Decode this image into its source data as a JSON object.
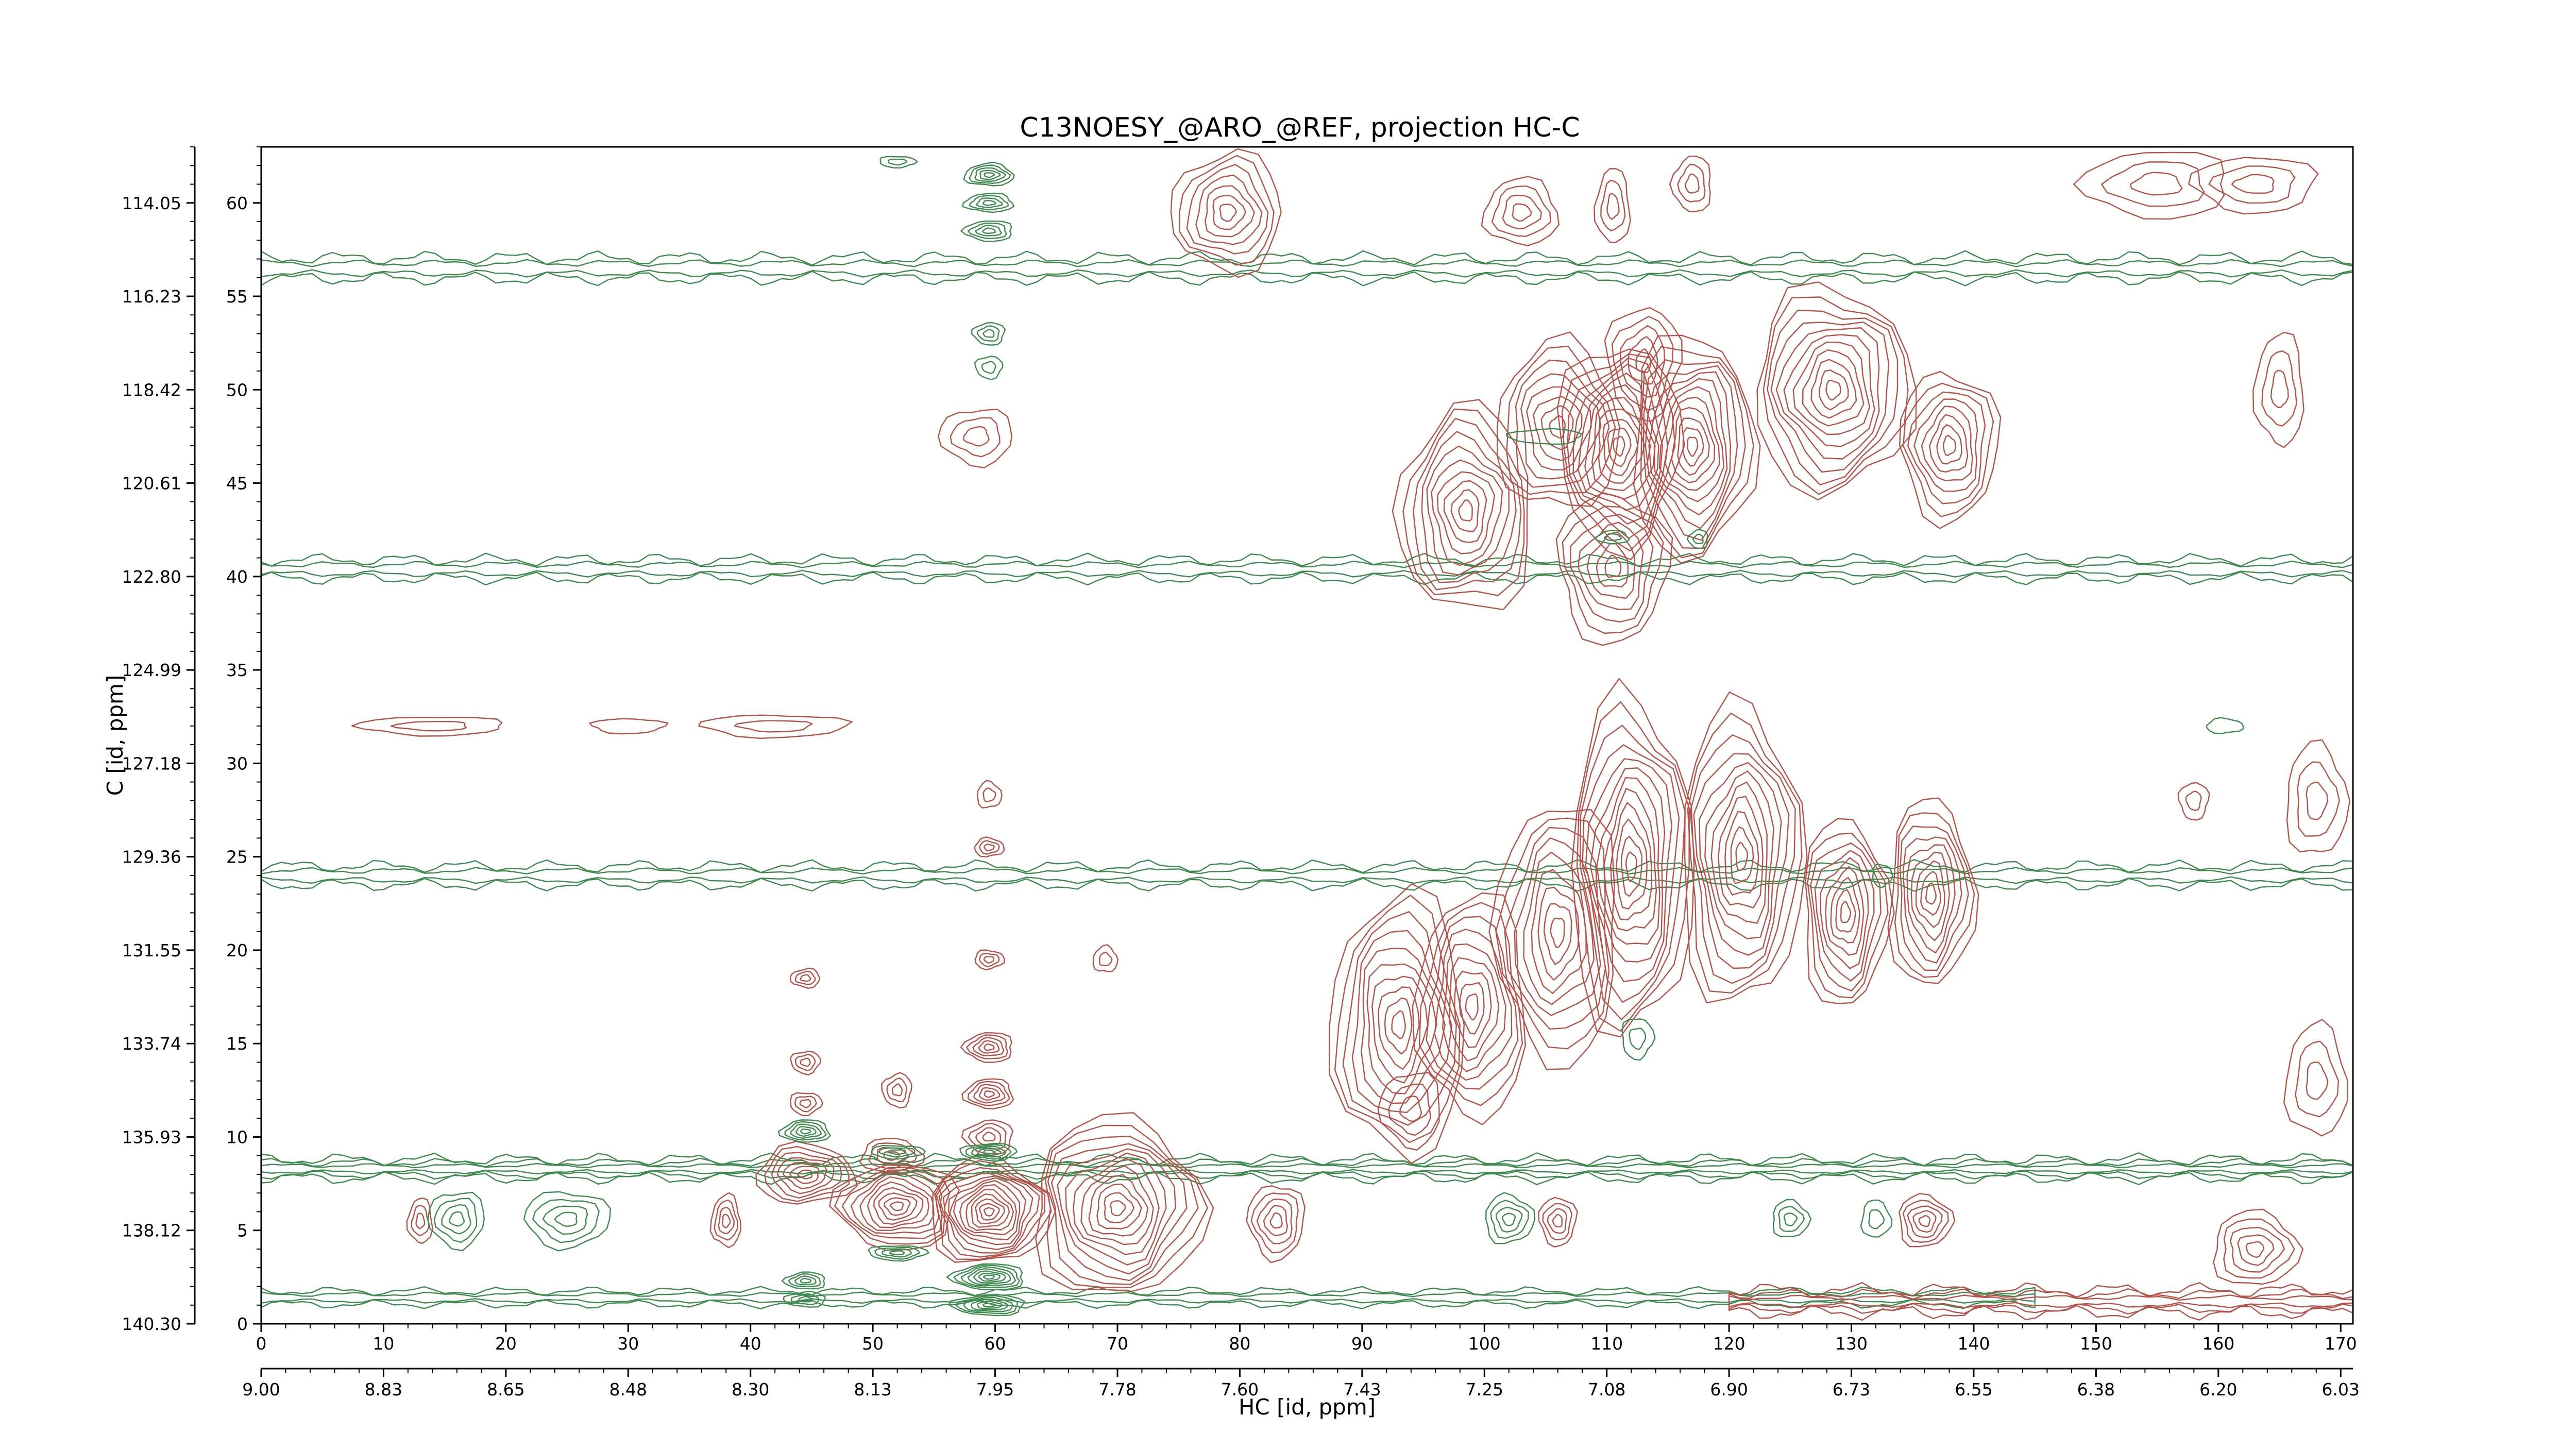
{
  "chart_data": {
    "type": "contour",
    "title": "C13NOESY_@ARO_@REF, projection HC-C",
    "xlabel": "HC [id, ppm]",
    "ylabel": "C [id, ppm]",
    "xlim": [
      0,
      171
    ],
    "ylim": [
      0,
      63
    ],
    "x_index_ticks": [
      "0",
      "10",
      "20",
      "30",
      "40",
      "50",
      "60",
      "70",
      "80",
      "90",
      "100",
      "110",
      "120",
      "130",
      "140",
      "150",
      "160",
      "170"
    ],
    "x_ppm_ticks": [
      "9.00",
      "8.83",
      "8.65",
      "8.48",
      "8.30",
      "8.13",
      "7.95",
      "7.78",
      "7.60",
      "7.43",
      "7.25",
      "7.08",
      "6.90",
      "6.73",
      "6.55",
      "6.38",
      "6.20",
      "6.03"
    ],
    "y_index_ticks": [
      "0",
      "5",
      "10",
      "15",
      "20",
      "25",
      "30",
      "35",
      "40",
      "45",
      "50",
      "55",
      "60"
    ],
    "y_ppm_ticks": [
      "140.30",
      "138.12",
      "135.93",
      "133.74",
      "131.55",
      "129.36",
      "127.18",
      "124.99",
      "122.80",
      "120.61",
      "118.42",
      "116.23",
      "114.05"
    ],
    "positive_color": "#b5534a",
    "negative_color": "#3f8a4f",
    "positive_peaks": [
      {
        "x": 79,
        "y": 59.5,
        "rx": 4.5,
        "ry": 3.2,
        "levels": 7
      },
      {
        "x": 103,
        "y": 59.5,
        "rx": 3,
        "ry": 1.8,
        "levels": 4
      },
      {
        "x": 110.5,
        "y": 59.8,
        "rx": 1.4,
        "ry": 2,
        "levels": 3
      },
      {
        "x": 117,
        "y": 61,
        "rx": 1.6,
        "ry": 1.5,
        "levels": 3
      },
      {
        "x": 98.5,
        "y": 43.5,
        "rx": 5.5,
        "ry": 5.5,
        "levels": 10
      },
      {
        "x": 106,
        "y": 48,
        "rx": 5,
        "ry": 4.5,
        "levels": 8
      },
      {
        "x": 111,
        "y": 47,
        "rx": 5,
        "ry": 5.5,
        "levels": 11
      },
      {
        "x": 117,
        "y": 47,
        "rx": 5,
        "ry": 6,
        "levels": 12
      },
      {
        "x": 128.5,
        "y": 50,
        "rx": 6.5,
        "ry": 5.5,
        "levels": 11
      },
      {
        "x": 138,
        "y": 47,
        "rx": 4,
        "ry": 4,
        "levels": 8
      },
      {
        "x": 110.5,
        "y": 40.5,
        "rx": 4.5,
        "ry": 4,
        "levels": 7
      },
      {
        "x": 113,
        "y": 51.5,
        "rx": 3,
        "ry": 3,
        "levels": 5
      },
      {
        "x": 93,
        "y": 16,
        "rx": 5.5,
        "ry": 7,
        "levels": 10
      },
      {
        "x": 99,
        "y": 17,
        "rx": 4.5,
        "ry": 6,
        "levels": 9
      },
      {
        "x": 106,
        "y": 21,
        "rx": 5,
        "ry": 7,
        "levels": 9
      },
      {
        "x": 112,
        "y": 24.5,
        "rx": 5,
        "ry": 9,
        "levels": 12
      },
      {
        "x": 121,
        "y": 25,
        "rx": 5,
        "ry": 8,
        "levels": 11
      },
      {
        "x": 129.5,
        "y": 22,
        "rx": 3.5,
        "ry": 5,
        "levels": 9
      },
      {
        "x": 136.5,
        "y": 23,
        "rx": 3.5,
        "ry": 5,
        "levels": 9
      },
      {
        "x": 94,
        "y": 11.5,
        "rx": 2.5,
        "ry": 2,
        "levels": 3
      },
      {
        "x": 44.5,
        "y": 8,
        "rx": 4,
        "ry": 1.6,
        "levels": 7
      },
      {
        "x": 52,
        "y": 6.3,
        "rx": 5,
        "ry": 2.3,
        "levels": 10
      },
      {
        "x": 59.5,
        "y": 6,
        "rx": 5,
        "ry": 2.8,
        "levels": 13
      },
      {
        "x": 70,
        "y": 6.2,
        "rx": 7,
        "ry": 4.8,
        "levels": 12
      },
      {
        "x": 38,
        "y": 5.5,
        "rx": 1.2,
        "ry": 1.4,
        "levels": 4
      },
      {
        "x": 13,
        "y": 5.5,
        "rx": 1,
        "ry": 1.2,
        "levels": 3
      },
      {
        "x": 83,
        "y": 5.5,
        "rx": 2.3,
        "ry": 2,
        "levels": 5
      },
      {
        "x": 106,
        "y": 5.5,
        "rx": 1.5,
        "ry": 1.3,
        "levels": 4
      },
      {
        "x": 136,
        "y": 5.5,
        "rx": 2.2,
        "ry": 1.4,
        "levels": 5
      },
      {
        "x": 163,
        "y": 4,
        "rx": 3.5,
        "ry": 2,
        "levels": 5
      },
      {
        "x": 51.5,
        "y": 9,
        "rx": 2.5,
        "ry": 0.9,
        "levels": 4
      },
      {
        "x": 59.5,
        "y": 12.3,
        "rx": 2,
        "ry": 0.8,
        "levels": 5
      },
      {
        "x": 59.5,
        "y": 14.8,
        "rx": 2,
        "ry": 0.8,
        "levels": 5
      },
      {
        "x": 59.5,
        "y": 10,
        "rx": 2,
        "ry": 0.9,
        "levels": 4
      },
      {
        "x": 52,
        "y": 12.5,
        "rx": 1.2,
        "ry": 0.9,
        "levels": 3
      },
      {
        "x": 44.5,
        "y": 14,
        "rx": 1.2,
        "ry": 0.6,
        "levels": 3
      },
      {
        "x": 44.5,
        "y": 11.8,
        "rx": 1.3,
        "ry": 0.6,
        "levels": 3
      },
      {
        "x": 59.5,
        "y": 19.5,
        "rx": 1.2,
        "ry": 0.5,
        "levels": 3
      },
      {
        "x": 59.5,
        "y": 25.5,
        "rx": 1.2,
        "ry": 0.5,
        "levels": 3
      },
      {
        "x": 59.5,
        "y": 28.3,
        "rx": 1,
        "ry": 0.7,
        "levels": 2
      },
      {
        "x": 69,
        "y": 19.5,
        "rx": 1,
        "ry": 0.7,
        "levels": 2
      },
      {
        "x": 44.5,
        "y": 18.5,
        "rx": 1.2,
        "ry": 0.5,
        "levels": 3
      },
      {
        "x": 58.5,
        "y": 47.5,
        "rx": 3,
        "ry": 1.5,
        "levels": 3
      },
      {
        "x": 14,
        "y": 32,
        "rx": 6,
        "ry": 0.5,
        "levels": 2
      },
      {
        "x": 42,
        "y": 32,
        "rx": 6,
        "ry": 0.6,
        "levels": 2
      },
      {
        "x": 30,
        "y": 32,
        "rx": 3,
        "ry": 0.4,
        "levels": 1
      },
      {
        "x": 168,
        "y": 28,
        "rx": 2.5,
        "ry": 3,
        "levels": 3
      },
      {
        "x": 168,
        "y": 13,
        "rx": 2.5,
        "ry": 3,
        "levels": 3
      },
      {
        "x": 165,
        "y": 50,
        "rx": 2,
        "ry": 3,
        "levels": 3
      },
      {
        "x": 155,
        "y": 61,
        "rx": 6,
        "ry": 1.8,
        "levels": 3
      },
      {
        "x": 163,
        "y": 61,
        "rx": 5,
        "ry": 1.5,
        "levels": 3
      },
      {
        "x": 158,
        "y": 28,
        "rx": 1.2,
        "ry": 1,
        "levels": 2
      }
    ],
    "negative_peaks": [
      {
        "x": 59.5,
        "y": 61.5,
        "rx": 2,
        "ry": 0.6,
        "levels": 5
      },
      {
        "x": 59.5,
        "y": 60,
        "rx": 2,
        "ry": 0.5,
        "levels": 4
      },
      {
        "x": 59.5,
        "y": 58.5,
        "rx": 2,
        "ry": 0.55,
        "levels": 4
      },
      {
        "x": 59.5,
        "y": 53,
        "rx": 1.3,
        "ry": 0.6,
        "levels": 3
      },
      {
        "x": 59.5,
        "y": 51.2,
        "rx": 1.1,
        "ry": 0.6,
        "levels": 2
      },
      {
        "x": 52,
        "y": 62.2,
        "rx": 1.5,
        "ry": 0.3,
        "levels": 2
      },
      {
        "x": 44.5,
        "y": 10.3,
        "rx": 2,
        "ry": 0.6,
        "levels": 5
      },
      {
        "x": 44.5,
        "y": 2.3,
        "rx": 1.7,
        "ry": 0.45,
        "levels": 4
      },
      {
        "x": 44.5,
        "y": 1.3,
        "rx": 1.7,
        "ry": 0.4,
        "levels": 3
      },
      {
        "x": 52,
        "y": 3.8,
        "rx": 2.4,
        "ry": 0.4,
        "levels": 4
      },
      {
        "x": 52,
        "y": 9.2,
        "rx": 2.2,
        "ry": 0.35,
        "levels": 3
      },
      {
        "x": 59.5,
        "y": 2.5,
        "rx": 3,
        "ry": 0.7,
        "levels": 7
      },
      {
        "x": 59.5,
        "y": 1,
        "rx": 3,
        "ry": 0.55,
        "levels": 6
      },
      {
        "x": 59.5,
        "y": 9.2,
        "rx": 2.3,
        "ry": 0.45,
        "levels": 5
      },
      {
        "x": 16,
        "y": 5.6,
        "rx": 2.3,
        "ry": 1.5,
        "levels": 4
      },
      {
        "x": 25,
        "y": 5.6,
        "rx": 3.5,
        "ry": 1.5,
        "levels": 4
      },
      {
        "x": 102,
        "y": 5.6,
        "rx": 2,
        "ry": 1.3,
        "levels": 4
      },
      {
        "x": 125,
        "y": 5.6,
        "rx": 1.5,
        "ry": 1,
        "levels": 3
      },
      {
        "x": 132,
        "y": 5.6,
        "rx": 1.2,
        "ry": 1,
        "levels": 2
      },
      {
        "x": 110.5,
        "y": 42.1,
        "rx": 1.3,
        "ry": 0.35,
        "levels": 2
      },
      {
        "x": 117.5,
        "y": 42,
        "rx": 0.8,
        "ry": 0.5,
        "levels": 2
      },
      {
        "x": 105,
        "y": 47.5,
        "rx": 3,
        "ry": 0.4,
        "levels": 1
      },
      {
        "x": 112.5,
        "y": 15.3,
        "rx": 1.3,
        "ry": 1.1,
        "levels": 2
      },
      {
        "x": 132.5,
        "y": 24,
        "rx": 0.8,
        "ry": 0.6,
        "levels": 1
      },
      {
        "x": 160.5,
        "y": 32,
        "rx": 1.5,
        "ry": 0.4,
        "levels": 1
      }
    ],
    "negative_bands": [
      {
        "y": 56.5,
        "x0": 0,
        "x1": 171,
        "amp": 0.55,
        "levels": 2
      },
      {
        "y": 40.4,
        "x0": 0,
        "x1": 171,
        "amp": 0.5,
        "levels": 2
      },
      {
        "y": 24,
        "x0": 0,
        "x1": 171,
        "amp": 0.5,
        "levels": 2
      },
      {
        "y": 8.3,
        "x0": 0,
        "x1": 171,
        "amp": 0.5,
        "levels": 3
      },
      {
        "y": 1.4,
        "x0": 0,
        "x1": 145,
        "amp": 0.35,
        "levels": 2
      }
    ],
    "positive_bands": [
      {
        "y": 1.2,
        "x0": 120,
        "x1": 171,
        "amp": 0.6,
        "levels": 3
      }
    ]
  }
}
